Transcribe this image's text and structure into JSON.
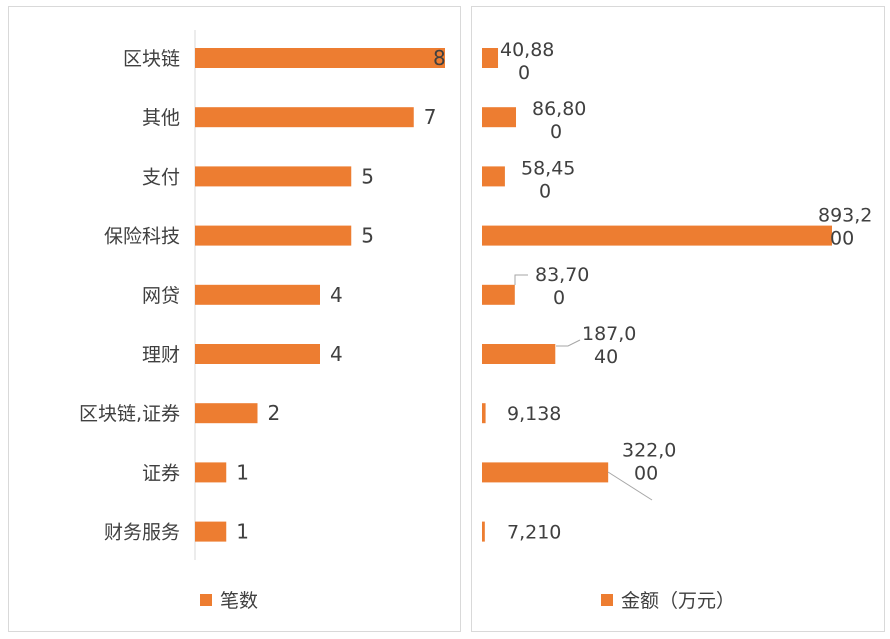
{
  "chart_data": [
    {
      "type": "bar",
      "orientation": "horizontal",
      "categories": [
        "区块链",
        "其他",
        "支付",
        "保险科技",
        "网贷",
        "理财",
        "区块链,证券",
        "证券",
        "财务服务"
      ],
      "series": [
        {
          "name": "笔数",
          "values": [
            8,
            7,
            5,
            5,
            4,
            4,
            2,
            1,
            1
          ]
        }
      ],
      "data_labels": [
        "8",
        "7",
        "5",
        "5",
        "4",
        "4",
        "2",
        "1",
        "1"
      ],
      "xlim": [
        0,
        8
      ],
      "legend": "bottom",
      "color": "#ed7d31"
    },
    {
      "type": "bar",
      "orientation": "horizontal",
      "categories": [
        "区块链",
        "其他",
        "支付",
        "保险科技",
        "网贷",
        "理财",
        "区块链,证券",
        "证券",
        "财务服务"
      ],
      "series": [
        {
          "name": "金额（万元）",
          "values": [
            40880,
            86800,
            58450,
            893200,
            83700,
            187040,
            9138,
            322000,
            7210
          ]
        }
      ],
      "data_labels": [
        [
          "40,88",
          "0"
        ],
        [
          "86,80",
          "0"
        ],
        [
          "58,45",
          "0"
        ],
        [
          "893,2",
          "00"
        ],
        [
          "83,70",
          "0"
        ],
        [
          "187,0",
          "40"
        ],
        [
          "9,138"
        ],
        [
          "322,0",
          "00"
        ],
        [
          "7,210"
        ]
      ],
      "xlim": [
        0,
        893200
      ],
      "legend": "bottom",
      "color": "#ed7d31"
    }
  ],
  "legend_left": {
    "label": "笔数"
  },
  "legend_right": {
    "label": "金额（万元）"
  }
}
